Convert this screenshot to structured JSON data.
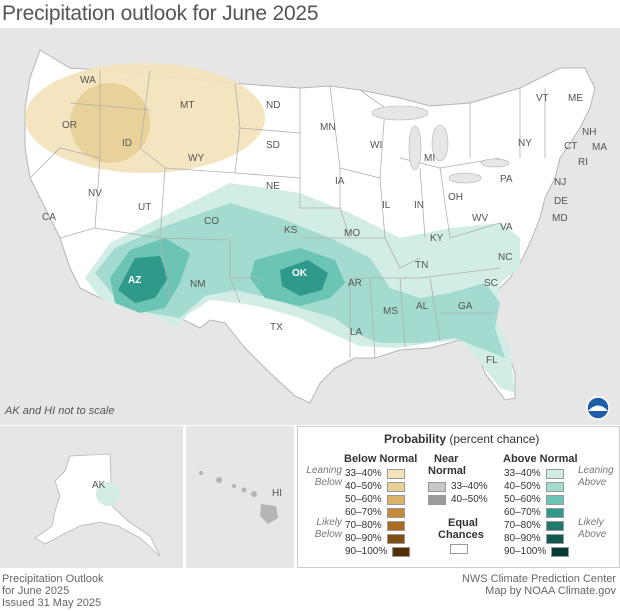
{
  "title": "Precipitation outlook for June 2025",
  "map_note": "AK and HI not to scale",
  "colors": {
    "background": "#e6e6e6",
    "land": "#ffffff",
    "state_border": "#b0b0b0",
    "below_33_40": "#f3e3bd",
    "below_40_50": "#e8cf96",
    "above_33_40": "#d2ece6",
    "above_40_50": "#a4dbd0",
    "above_50_60": "#6cc4b4",
    "above_60_70": "#2f9a8b"
  },
  "state_labels": [
    "WA",
    "OR",
    "ID",
    "MT",
    "ND",
    "MN",
    "WI",
    "MI",
    "NY",
    "VT",
    "ME",
    "NH",
    "MA",
    "CT",
    "RI",
    "NJ",
    "PA",
    "DE",
    "MD",
    "OH",
    "IN",
    "IL",
    "IA",
    "SD",
    "WY",
    "NV",
    "CA",
    "UT",
    "CO",
    "NE",
    "KS",
    "MO",
    "KY",
    "WV",
    "VA",
    "NC",
    "TN",
    "AR",
    "OK",
    "AZ",
    "NM",
    "TX",
    "LA",
    "MS",
    "AL",
    "GA",
    "SC",
    "FL",
    "AK",
    "HI"
  ],
  "legend": {
    "title_bold": "Probability",
    "title_rest": "(percent chance)",
    "below": {
      "heading": "Below Normal",
      "rows": [
        "33–40%",
        "40–50%",
        "50–60%",
        "60–70%",
        "70–80%",
        "80–90%",
        "90–100%"
      ],
      "swatches": [
        "#f3e3bd",
        "#e8cf96",
        "#d9b46a",
        "#c58a3b",
        "#a96c22",
        "#7f4e12",
        "#553005"
      ]
    },
    "near": {
      "heading_line1": "Near",
      "heading_line2": "Normal",
      "rows": [
        "33–40%",
        "40–50%"
      ],
      "swatches": [
        "#c7c7c7",
        "#9c9c9c"
      ]
    },
    "equal": {
      "line1": "Equal",
      "line2": "Chances"
    },
    "above": {
      "heading": "Above Normal",
      "rows": [
        "33–40%",
        "40–50%",
        "50–60%",
        "60–70%",
        "70–80%",
        "80–90%",
        "90–100%"
      ],
      "swatches": [
        "#d2ece6",
        "#a4dbd0",
        "#6cc4b4",
        "#2f9a8b",
        "#1f7a6d",
        "#115a4f",
        "#063a33"
      ]
    },
    "side_labels": {
      "leaning_below_1": "Leaning",
      "leaning_below_2": "Below",
      "likely_below_1": "Likely",
      "likely_below_2": "Below",
      "leaning_above_1": "Leaning",
      "leaning_above_2": "Above",
      "likely_above_1": "Likely",
      "likely_above_2": "Above"
    }
  },
  "footer_left": {
    "line1": "Precipitation Outlook",
    "line2": "for June 2025",
    "line3": "Issued 31 May 2025"
  },
  "footer_right": {
    "line1": "NWS Climate Prediction Center",
    "line2": "Map by NOAA Climate.gov"
  }
}
